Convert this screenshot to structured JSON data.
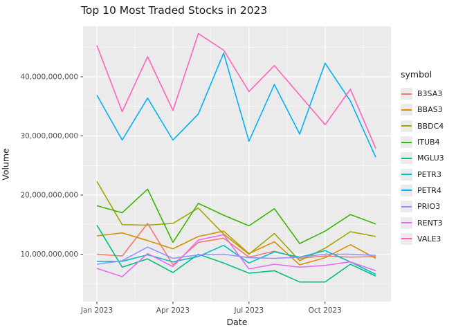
{
  "header": {
    "title": "Top 10 Most Traded Stocks in 2023"
  },
  "axes": {
    "x_title": "Date",
    "y_title": "Volume"
  },
  "legend": {
    "title": "symbol",
    "entries": [
      "B3SA3",
      "BBAS3",
      "BBDC4",
      "ITUB4",
      "MGLU3",
      "PETR3",
      "PETR4",
      "PRIO3",
      "RENT3",
      "VALE3"
    ]
  },
  "style": {
    "panel_bg": "#ebebeb",
    "grid_color": "#ffffff",
    "tick_label_color": "#4d4d4d",
    "text_color": "#1a1a1a",
    "tick_mark_color": "#333333"
  },
  "chart_data": {
    "type": "line",
    "title": "Top 10 Most Traded Stocks in 2023",
    "xlabel": "Date",
    "ylabel": "Volume",
    "x_unit": "month of 2023",
    "months": [
      "Jan",
      "Feb",
      "Mar",
      "Apr",
      "May",
      "Jun",
      "Jul",
      "Aug",
      "Sep",
      "Oct",
      "Nov",
      "Dec"
    ],
    "x_tick_labels": [
      "Jan 2023",
      "Apr 2023",
      "Jul 2023",
      "Oct 2023"
    ],
    "x_tick_months": [
      1,
      4,
      7,
      10
    ],
    "y_ticks_billions": [
      10,
      20,
      30,
      40
    ],
    "y_tick_labels": [
      "10,000,000,000",
      "20,000,000,000",
      "30,000,000,000",
      "40,000,000,000"
    ],
    "y_minor_ticks_billions": [
      5,
      15,
      25,
      35,
      45
    ],
    "ylim_billions": [
      2.0,
      48.5
    ],
    "grid": true,
    "legend_position": "right",
    "legend_title": "symbol",
    "series": [
      {
        "name": "B3SA3",
        "color": "#F8766D",
        "values_billions": [
          10.0,
          9.7,
          15.2,
          8.2,
          12.0,
          12.7,
          9.5,
          10.5,
          9.3,
          9.7,
          9.5,
          9.6
        ]
      },
      {
        "name": "BBAS3",
        "color": "#D89000",
        "values_billions": [
          13.1,
          13.6,
          12.3,
          10.9,
          13.0,
          13.9,
          10.1,
          12.1,
          8.2,
          9.4,
          11.6,
          9.3
        ]
      },
      {
        "name": "BBDC4",
        "color": "#A3A500",
        "values_billions": [
          22.3,
          15.0,
          14.9,
          15.2,
          17.8,
          13.4,
          10.0,
          13.5,
          8.9,
          11.0,
          13.8,
          13.0
        ]
      },
      {
        "name": "ITUB4",
        "color": "#39B600",
        "values_billions": [
          18.2,
          17.0,
          21.0,
          12.0,
          18.6,
          16.6,
          14.8,
          17.7,
          11.8,
          13.9,
          16.7,
          15.1
        ]
      },
      {
        "name": "MGLU3",
        "color": "#00BF7D",
        "values_billions": [
          14.9,
          7.8,
          9.2,
          6.9,
          10.0,
          8.5,
          6.8,
          7.2,
          5.3,
          5.3,
          8.3,
          6.3
        ]
      },
      {
        "name": "PETR3",
        "color": "#00BFC4",
        "values_billions": [
          8.8,
          8.8,
          9.9,
          8.7,
          9.6,
          11.5,
          8.5,
          10.4,
          9.5,
          10.6,
          8.7,
          6.6
        ]
      },
      {
        "name": "PETR4",
        "color": "#00B0F6",
        "values_billions": [
          36.9,
          29.3,
          36.4,
          29.3,
          33.7,
          44.0,
          29.1,
          38.7,
          30.3,
          42.3,
          35.9,
          26.4
        ]
      },
      {
        "name": "PRIO3",
        "color": "#9590FF",
        "values_billions": [
          8.3,
          8.9,
          11.2,
          9.3,
          9.9,
          10.0,
          9.4,
          9.3,
          9.5,
          10.0,
          10.0,
          9.8
        ]
      },
      {
        "name": "RENT3",
        "color": "#E76BF3",
        "values_billions": [
          7.6,
          6.2,
          10.1,
          7.9,
          12.4,
          13.3,
          7.5,
          8.3,
          7.8,
          8.1,
          8.7,
          7.2
        ]
      },
      {
        "name": "VALE3",
        "color": "#FF62BC",
        "values_billions": [
          45.3,
          34.1,
          43.4,
          34.3,
          47.3,
          44.5,
          37.5,
          41.9,
          36.9,
          31.9,
          37.9,
          27.9
        ]
      }
    ]
  }
}
